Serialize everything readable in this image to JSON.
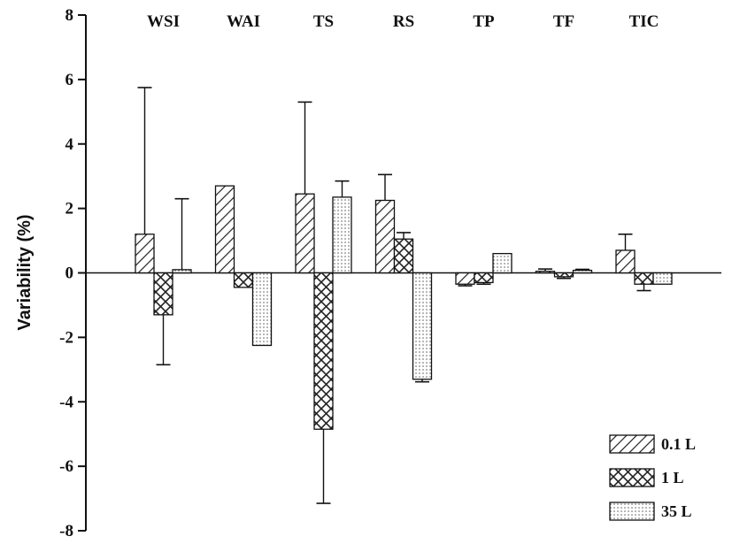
{
  "chart_data": {
    "type": "bar",
    "title": "",
    "ylabel": "Variability (%)",
    "xlabel": "",
    "ylim": [
      -8,
      8
    ],
    "yticks": [
      8,
      6,
      4,
      2,
      0,
      -2,
      -4,
      -6,
      -8
    ],
    "categories": [
      "WSI",
      "WAI",
      "TS",
      "RS",
      "TP",
      "TF",
      "TIC"
    ],
    "category_labels_position": "top",
    "grid": false,
    "legend_position": "bottom-right",
    "series": [
      {
        "name": "0.1 L",
        "pattern": "diagonal-hatch",
        "values": [
          1.2,
          2.7,
          2.45,
          2.25,
          -0.35,
          0.05,
          0.7
        ],
        "errors": [
          4.55,
          0,
          2.85,
          0.8,
          0.05,
          0.07,
          0.5
        ]
      },
      {
        "name": "1 L",
        "pattern": "crosshatch",
        "values": [
          -1.3,
          -0.45,
          -4.85,
          1.05,
          -0.3,
          -0.12,
          -0.35
        ],
        "errors": [
          1.55,
          0,
          2.3,
          0.2,
          0.05,
          0.05,
          0.2
        ]
      },
      {
        "name": "35 L",
        "pattern": "dotted",
        "values": [
          0.1,
          -2.25,
          2.35,
          -3.3,
          0.6,
          0.08,
          -0.35
        ],
        "errors": [
          2.2,
          0,
          0.5,
          0.08,
          0,
          0.03,
          0
        ]
      }
    ]
  }
}
